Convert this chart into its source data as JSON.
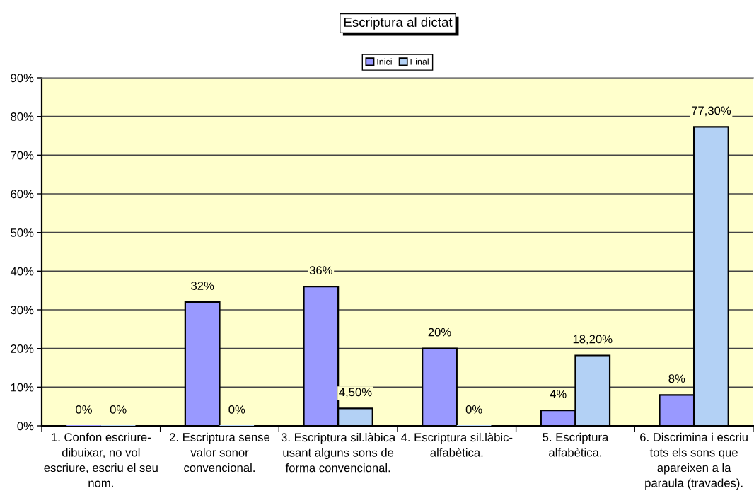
{
  "chart_data": {
    "type": "bar",
    "title": "Escriptura al dictat",
    "categories": [
      "1. Confon escriure-\ndibuixar, no vol\nescriure, escriu el seu\nnom.",
      "2. Escriptura sense\nvalor sonor\nconvencional.",
      "3. Escriptura sil.làbica\nusant alguns sons de\nforma convencional.",
      "4. Escriptura sil.làbic-\nalfabètica.",
      "5. Escriptura\nalfabètica.",
      "6. Discrimina i escriu\ntots els sons que\napareixen a la\nparaula (travades)."
    ],
    "series": [
      {
        "name": "Inici",
        "color": "#9999ff",
        "values": [
          0,
          32,
          36,
          20,
          4,
          8
        ],
        "value_labels": [
          "0%",
          "32%",
          "36%",
          "20%",
          "4%",
          "8%"
        ]
      },
      {
        "name": "Final",
        "color": "#b3d1f5",
        "values": [
          0,
          0,
          4.5,
          0,
          18.2,
          77.3
        ],
        "value_labels": [
          "0%",
          "0%",
          "4,50%",
          "0%",
          "18,20%",
          "77,30%"
        ]
      }
    ],
    "ylim": [
      0,
      90
    ],
    "yticks": [
      {
        "value": 0,
        "label": "0%"
      },
      {
        "value": 10,
        "label": "10%"
      },
      {
        "value": 20,
        "label": "20%"
      },
      {
        "value": 30,
        "label": "30%"
      },
      {
        "value": 40,
        "label": "40%"
      },
      {
        "value": 50,
        "label": "50%"
      },
      {
        "value": 60,
        "label": "60%"
      },
      {
        "value": 70,
        "label": "70%"
      },
      {
        "value": 80,
        "label": "80%"
      },
      {
        "value": 90,
        "label": "90%"
      }
    ],
    "grid": "y",
    "legend": "top"
  }
}
